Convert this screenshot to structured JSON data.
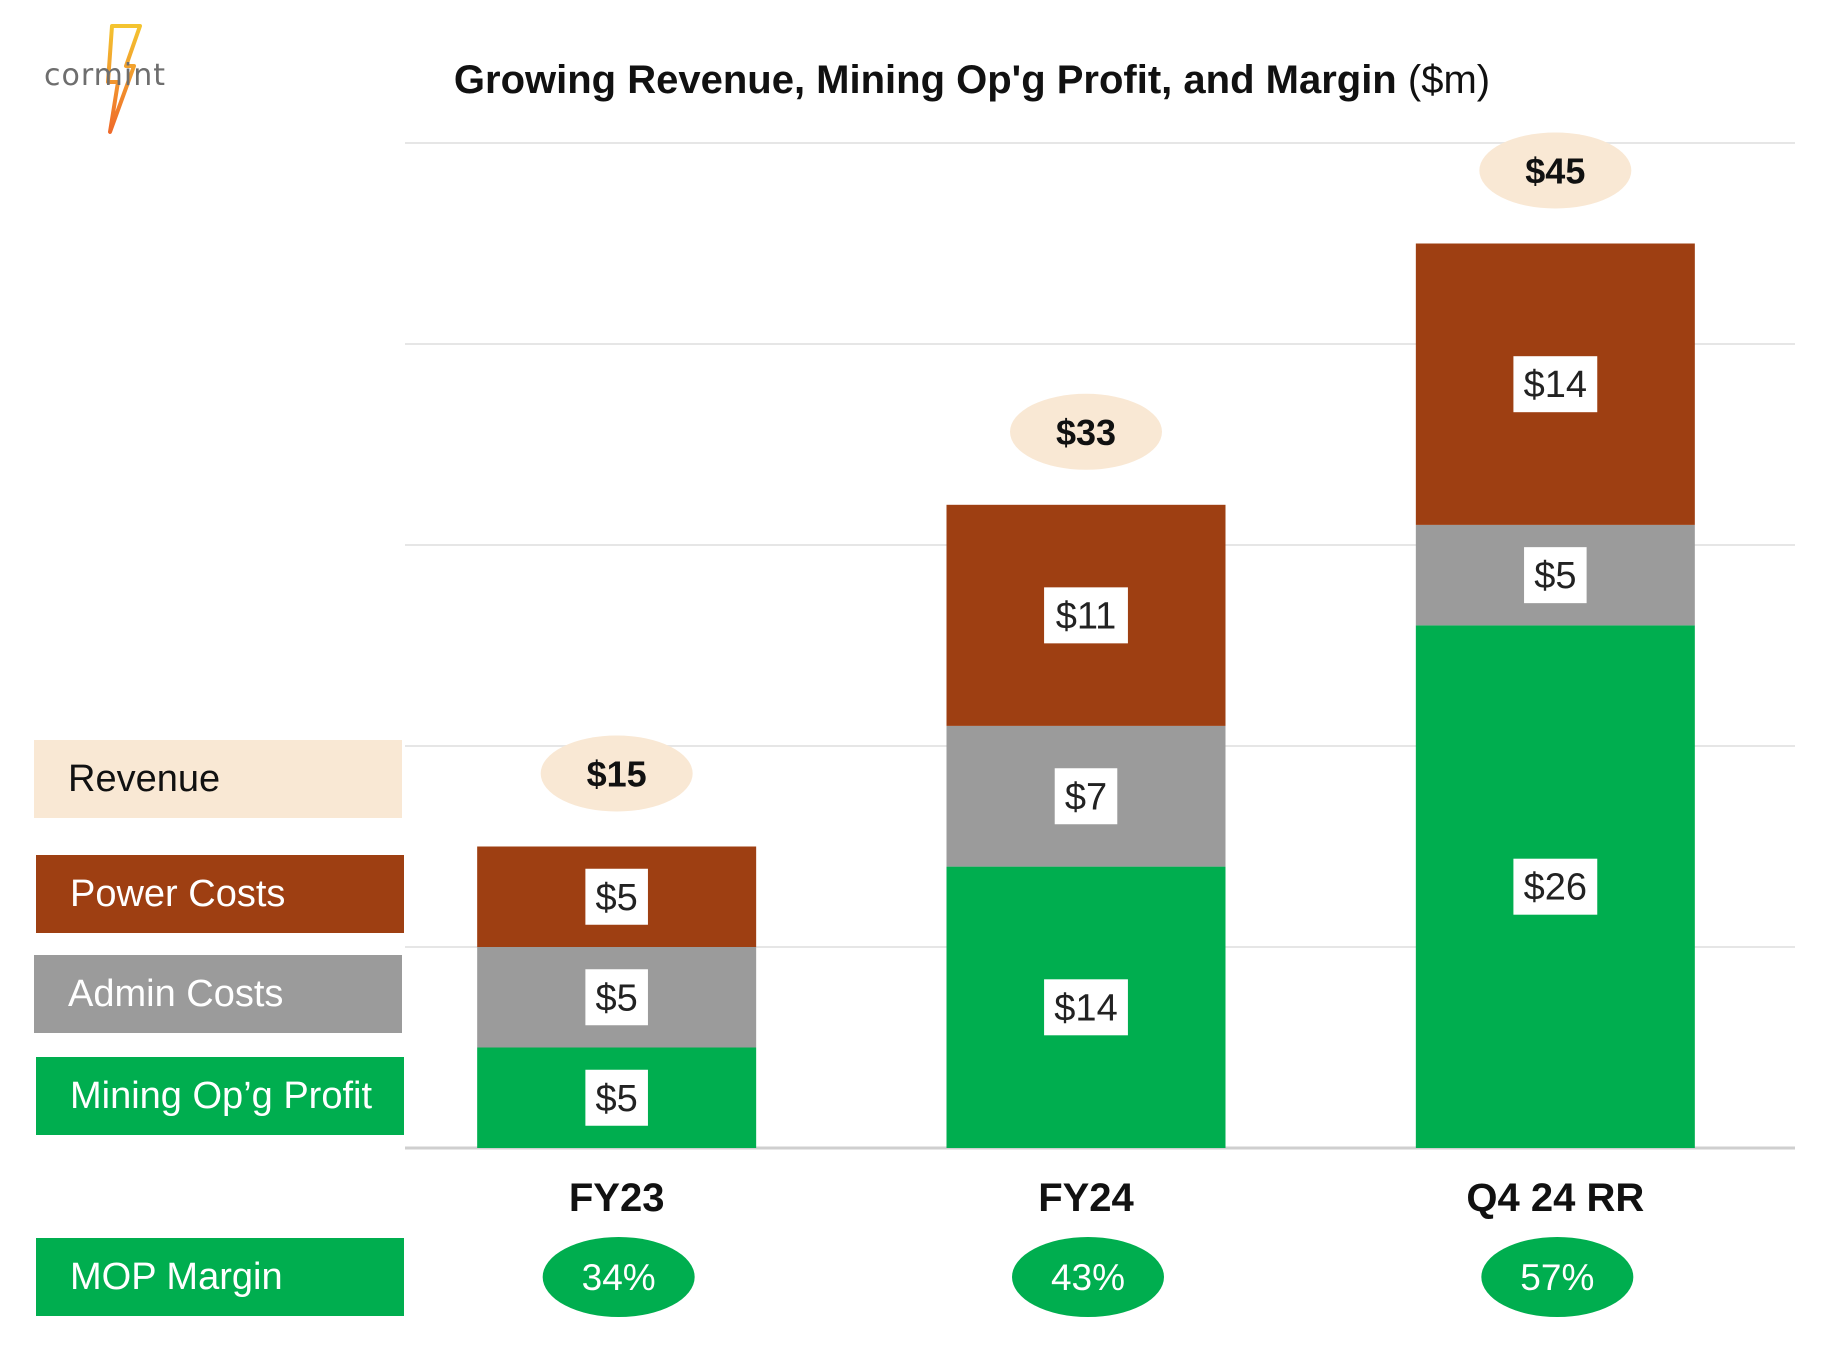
{
  "logo": {
    "text": "cormint"
  },
  "title": {
    "bold": "Growing Revenue, Mining Op'g Profit, and Margin",
    "unit": "($m)"
  },
  "legend": {
    "revenue": {
      "label": "Revenue",
      "color": "#f9e8d4",
      "text_color": "#111111"
    },
    "power": {
      "label": "Power Costs",
      "color": "#9e3f12",
      "text_color": "#ffffff"
    },
    "admin": {
      "label": "Admin Costs",
      "color": "#9b9b9b",
      "text_color": "#ffffff"
    },
    "mop": {
      "label": "Mining Op’g Profit",
      "color": "#00ae4f",
      "text_color": "#ffffff"
    },
    "margin": {
      "label": "MOP Margin",
      "color": "#00ae4f",
      "text_color": "#ffffff"
    }
  },
  "chart_data": {
    "type": "bar",
    "stacked": true,
    "title": "Growing Revenue, Mining Op'g Profit, and Margin ($m)",
    "categories": [
      "FY23",
      "FY24",
      "Q4 24 RR"
    ],
    "series": [
      {
        "name": "Mining Op’g Profit",
        "values": [
          5,
          14,
          26
        ],
        "labels": [
          "$5",
          "$14",
          "$26"
        ],
        "color": "#00ae4f"
      },
      {
        "name": "Admin Costs",
        "values": [
          5,
          7,
          5
        ],
        "labels": [
          "$5",
          "$7",
          "$5"
        ],
        "color": "#9b9b9b"
      },
      {
        "name": "Power Costs",
        "values": [
          5,
          11,
          14
        ],
        "labels": [
          "$5",
          "$11",
          "$14"
        ],
        "color": "#9e3f12"
      }
    ],
    "totals": {
      "name": "Revenue",
      "values": [
        15,
        33,
        45
      ],
      "labels": [
        "$15",
        "$33",
        "$45"
      ]
    },
    "margins": {
      "name": "MOP Margin",
      "values": [
        34,
        43,
        57
      ],
      "labels": [
        "34%",
        "43%",
        "57%"
      ]
    },
    "ylim": [
      0,
      50
    ],
    "grid": true,
    "xlabel": "",
    "ylabel": ""
  }
}
